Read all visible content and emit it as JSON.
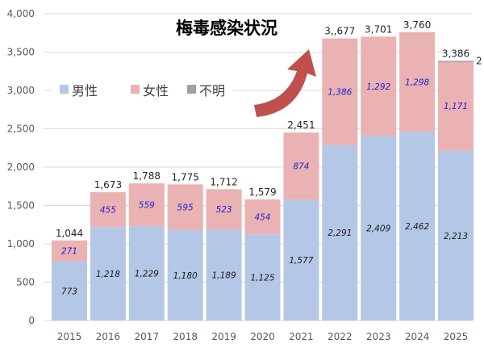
{
  "chart_data": {
    "type": "bar",
    "stacked": true,
    "title": "梅毒感染状況",
    "categories": [
      "2015",
      "2016",
      "2017",
      "2018",
      "2019",
      "2020",
      "2021",
      "2022",
      "2023",
      "2024",
      "2025"
    ],
    "series": [
      {
        "name": "男性",
        "color": "#b4c7e7",
        "label_color": "#1a1a1a",
        "values": [
          773,
          1218,
          1229,
          1180,
          1189,
          1125,
          1577,
          2291,
          2409,
          2462,
          2213
        ],
        "labels": [
          "773",
          "1,218",
          "1,229",
          "1,180",
          "1,189",
          "1,125",
          "1,577",
          "2,291",
          "2,409",
          "2,462",
          "2,213"
        ]
      },
      {
        "name": "女性",
        "color": "#eab2b2",
        "label_color": "#1f1fd6",
        "values": [
          271,
          455,
          559,
          595,
          523,
          454,
          874,
          1386,
          1292,
          1298,
          1171
        ],
        "labels": [
          "271",
          "455",
          "559",
          "595",
          "523",
          "454",
          "874",
          "1,386",
          "1,292",
          "1,298",
          "1,171"
        ]
      },
      {
        "name": "不明",
        "color": "#a0a0a0",
        "values": [
          0,
          0,
          0,
          0,
          0,
          0,
          0,
          0,
          0,
          0,
          2
        ]
      }
    ],
    "totals": [
      "1,044",
      "1,673",
      "1,788",
      "1,775",
      "1,712",
      "1,579",
      "2,451",
      "3,,677",
      "3,701",
      "3,760",
      "3,386"
    ],
    "extra_labels": [
      "2"
    ],
    "ylim": [
      0,
      4000
    ],
    "yticks": [
      "0",
      "500",
      "1,000",
      "1,500",
      "2,000",
      "2,500",
      "3,000",
      "3,500",
      "4,000"
    ],
    "grid": true,
    "legend_position": "upper-left",
    "arrow_color": "#c0504d"
  }
}
